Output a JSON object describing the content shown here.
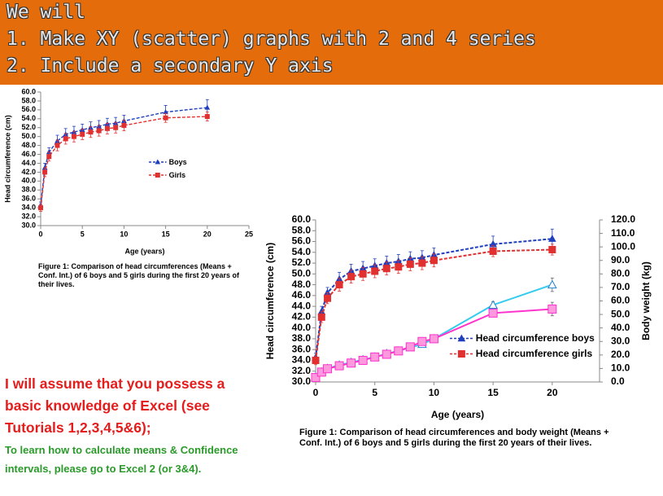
{
  "header": {
    "lines": [
      "We will",
      "1. Make XY (scatter) graphs with 2 and 4 series",
      "2. Include a secondary Y axis"
    ]
  },
  "chart_data": [
    {
      "type": "scatter",
      "x_label": "Age (years)",
      "y_label": "Head circumference (cm)",
      "caption": "Figure 1: Comparison of head circumferences (Means + Conf. Int.) of 6 boys and 5 girls during the first 20 years of their lives.",
      "x": [
        0,
        0.5,
        1,
        2,
        3,
        4,
        5,
        6,
        7,
        8,
        9,
        10,
        15,
        20
      ],
      "series": [
        {
          "name": "Boys",
          "color": "#1f3fbf",
          "marker": "triangle",
          "dashed": true,
          "values": [
            34.5,
            43,
            46.5,
            49,
            50.5,
            51,
            51.5,
            52,
            52.3,
            52.8,
            53,
            53.5,
            55.5,
            56.5
          ],
          "errors": [
            0.8,
            1,
            1,
            1.3,
            1.3,
            1.3,
            1.3,
            1.3,
            1.3,
            1.3,
            1.3,
            1.3,
            1.5,
            1.8
          ]
        },
        {
          "name": "Girls",
          "color": "#e03030",
          "marker": "square",
          "dashed": true,
          "values": [
            34,
            42,
            45.5,
            48,
            49.5,
            50,
            50.5,
            51,
            51.3,
            51.8,
            52,
            52.5,
            54.2,
            54.5
          ],
          "errors": [
            0.8,
            1,
            1,
            1.2,
            1.2,
            1.2,
            1.2,
            1.2,
            1.2,
            1.2,
            1.2,
            1.2,
            1,
            1
          ]
        }
      ],
      "xlim": [
        0,
        25
      ],
      "xticks": [
        0,
        5,
        10,
        15,
        20,
        25
      ],
      "ylim": [
        30,
        60
      ],
      "yticks": [
        {
          "value": 30,
          "label": "30.0"
        },
        {
          "value": 32,
          "label": "32.0"
        },
        {
          "value": 34,
          "label": "34.0"
        },
        {
          "value": 36,
          "label": "36.0"
        },
        {
          "value": 38,
          "label": "38.0"
        },
        {
          "value": 40,
          "label": "40.0"
        },
        {
          "value": 42,
          "label": "42.0"
        },
        {
          "value": 44,
          "label": "44.0"
        },
        {
          "value": 46,
          "label": "46.0"
        },
        {
          "value": 48,
          "label": "48.0"
        },
        {
          "value": 50,
          "label": "50.0"
        },
        {
          "value": 52,
          "label": "52.0"
        },
        {
          "value": 54,
          "label": "54.0"
        },
        {
          "value": 56,
          "label": "56.0"
        },
        {
          "value": 58,
          "label": "58.0"
        },
        {
          "value": 60,
          "label": "60.0"
        }
      ]
    },
    {
      "type": "scatter",
      "x_label": "Age (years)",
      "y_label": "Head circumference (cm)",
      "y2_label": "Body weight (kg)",
      "caption": "Figure 1: Comparison of head circumferences and body weight (Means + Conf. Int.) of 6 boys and 5 girls during the first 20 years of their lives.",
      "x": [
        0,
        0.5,
        1,
        2,
        3,
        4,
        5,
        6,
        7,
        8,
        9,
        10,
        15,
        20
      ],
      "series": [
        {
          "name": "Head circumference boys",
          "color": "#1f3fbf",
          "marker": "triangle",
          "dashed": true,
          "values": [
            34.5,
            43,
            46.5,
            49,
            50.5,
            51,
            51.5,
            52,
            52.3,
            52.8,
            53,
            53.5,
            55.5,
            56.5
          ],
          "errors": [
            0.8,
            1,
            1,
            1.3,
            1.3,
            1.3,
            1.3,
            1.3,
            1.3,
            1.3,
            1.3,
            1.3,
            1.5,
            1.8
          ]
        },
        {
          "name": "Head circumference girls",
          "color": "#e03030",
          "marker": "square",
          "dashed": true,
          "values": [
            34,
            42,
            45.5,
            48,
            49.5,
            50,
            50.5,
            51,
            51.3,
            51.8,
            52,
            52.5,
            54.2,
            54.5
          ],
          "errors": [
            0.8,
            1,
            1,
            1.2,
            1.2,
            1.2,
            1.2,
            1.2,
            1.2,
            1.2,
            1.2,
            1.2,
            1,
            1
          ]
        },
        {
          "color": "#33ccee",
          "marker": "triangle",
          "dashed": false,
          "axis": "y2",
          "values": [
            3.5,
            7.5,
            10,
            12.5,
            14.5,
            16.5,
            18.5,
            21,
            23,
            25.5,
            28,
            32,
            57,
            72
          ],
          "errors": [
            0.5,
            0.8,
            1,
            1,
            1,
            1,
            1.2,
            1.5,
            1.5,
            2,
            2,
            2,
            2.5,
            5
          ]
        },
        {
          "color": "#ff33cc",
          "marker": "square",
          "dashed": false,
          "axis": "y2",
          "values": [
            3.3,
            7.3,
            9.8,
            12,
            14,
            16,
            18.5,
            20.5,
            23,
            26,
            30,
            32,
            51,
            54
          ],
          "errors": [
            0.5,
            0.8,
            1,
            1,
            1,
            1,
            1.2,
            1.5,
            1.5,
            2,
            2,
            2,
            2.5,
            5
          ]
        }
      ],
      "xlim": [
        0,
        24
      ],
      "xticks": [
        0,
        5,
        10,
        15,
        20
      ],
      "ylim": [
        30,
        60
      ],
      "yticks": [
        {
          "value": 30,
          "label": "30.0"
        },
        {
          "value": 32,
          "label": "32.0"
        },
        {
          "value": 34,
          "label": "34.0"
        },
        {
          "value": 36,
          "label": "36.0"
        },
        {
          "value": 38,
          "label": "38.0"
        },
        {
          "value": 40,
          "label": "40.0"
        },
        {
          "value": 42,
          "label": "42.0"
        },
        {
          "value": 44,
          "label": "44.0"
        },
        {
          "value": 46,
          "label": "46.0"
        },
        {
          "value": 48,
          "label": "48.0"
        },
        {
          "value": 50,
          "label": "50.0"
        },
        {
          "value": 52,
          "label": "52.0"
        },
        {
          "value": 54,
          "label": "54.0"
        },
        {
          "value": 56,
          "label": "56.0"
        },
        {
          "value": 58,
          "label": "58.0"
        },
        {
          "value": 60,
          "label": "60.0"
        }
      ],
      "y2lim": [
        0,
        120
      ],
      "y2ticks": [
        {
          "value": 0,
          "label": "0.0"
        },
        {
          "value": 10,
          "label": "10.0"
        },
        {
          "value": 20,
          "label": "20.0"
        },
        {
          "value": 30,
          "label": "30.0"
        },
        {
          "value": 40,
          "label": "40.0"
        },
        {
          "value": 50,
          "label": "50.0"
        },
        {
          "value": 60,
          "label": "60.0"
        },
        {
          "value": 70,
          "label": "70.0"
        },
        {
          "value": 80,
          "label": "80.0"
        },
        {
          "value": 90,
          "label": "90.0"
        },
        {
          "value": 100,
          "label": "100.0"
        },
        {
          "value": 110,
          "label": "110.0"
        },
        {
          "value": 120,
          "label": "120.0"
        }
      ]
    }
  ],
  "notes": {
    "assumption": "I will assume that you possess a basic knowledge of Excel (see Tutorials 1,2,3,4,5&6);",
    "instructions": "To learn how to calculate means & Confidence intervals, please go to Excel 2 (or 3&4)."
  }
}
